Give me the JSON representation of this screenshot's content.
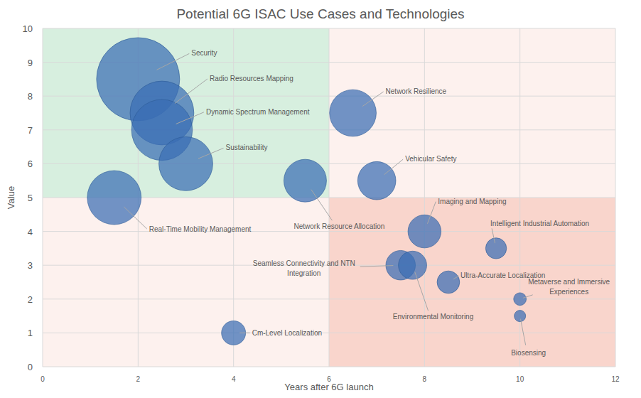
{
  "chart_data": {
    "type": "bubble",
    "title": "Potential 6G ISAC Use Cases and Technologies",
    "x_label": "Years after 6G launch",
    "y_label": "Value",
    "xlim": [
      0,
      12
    ],
    "xticks": [
      0,
      2,
      4,
      6,
      8,
      10,
      12
    ],
    "ylim": [
      0,
      10
    ],
    "yticks": [
      0,
      1,
      2,
      3,
      4,
      5,
      6,
      7,
      8,
      9,
      10
    ],
    "grid": true,
    "color": "#3a6db4",
    "quadrants": {
      "x": 6,
      "y": 5
    },
    "labels": [
      "Security",
      "Radio Resources Mapping",
      "Dynamic Spectrum Management",
      "Sustainability",
      "Real-Time Mobility Management",
      "Network Resource Allocation",
      "Network Resilience",
      "Vehicular Safety",
      "Imaging and Mapping",
      "Intelligent Industrial Automation",
      "Seamless Connectivity and NTN Integration",
      "Environmental Monitoring",
      "Ultra-Accurate Localization",
      "Metaverse and Immersive Experiences",
      "Biosensing",
      "Cm-Level Localization"
    ],
    "x": [
      2,
      2.5,
      2.5,
      3,
      1.5,
      5.5,
      6.5,
      7,
      8,
      9.5,
      7.5,
      7.75,
      8.5,
      10,
      10,
      4
    ],
    "values": [
      8.5,
      7.5,
      7,
      6,
      5,
      5.5,
      7.5,
      5.5,
      4,
      3.5,
      3,
      3,
      2.5,
      2,
      1.5,
      1
    ],
    "sizes": [
      95,
      56,
      51,
      40,
      40,
      25,
      30,
      20,
      15,
      6,
      12,
      11,
      7,
      2.2,
      1.8,
      8
    ]
  }
}
